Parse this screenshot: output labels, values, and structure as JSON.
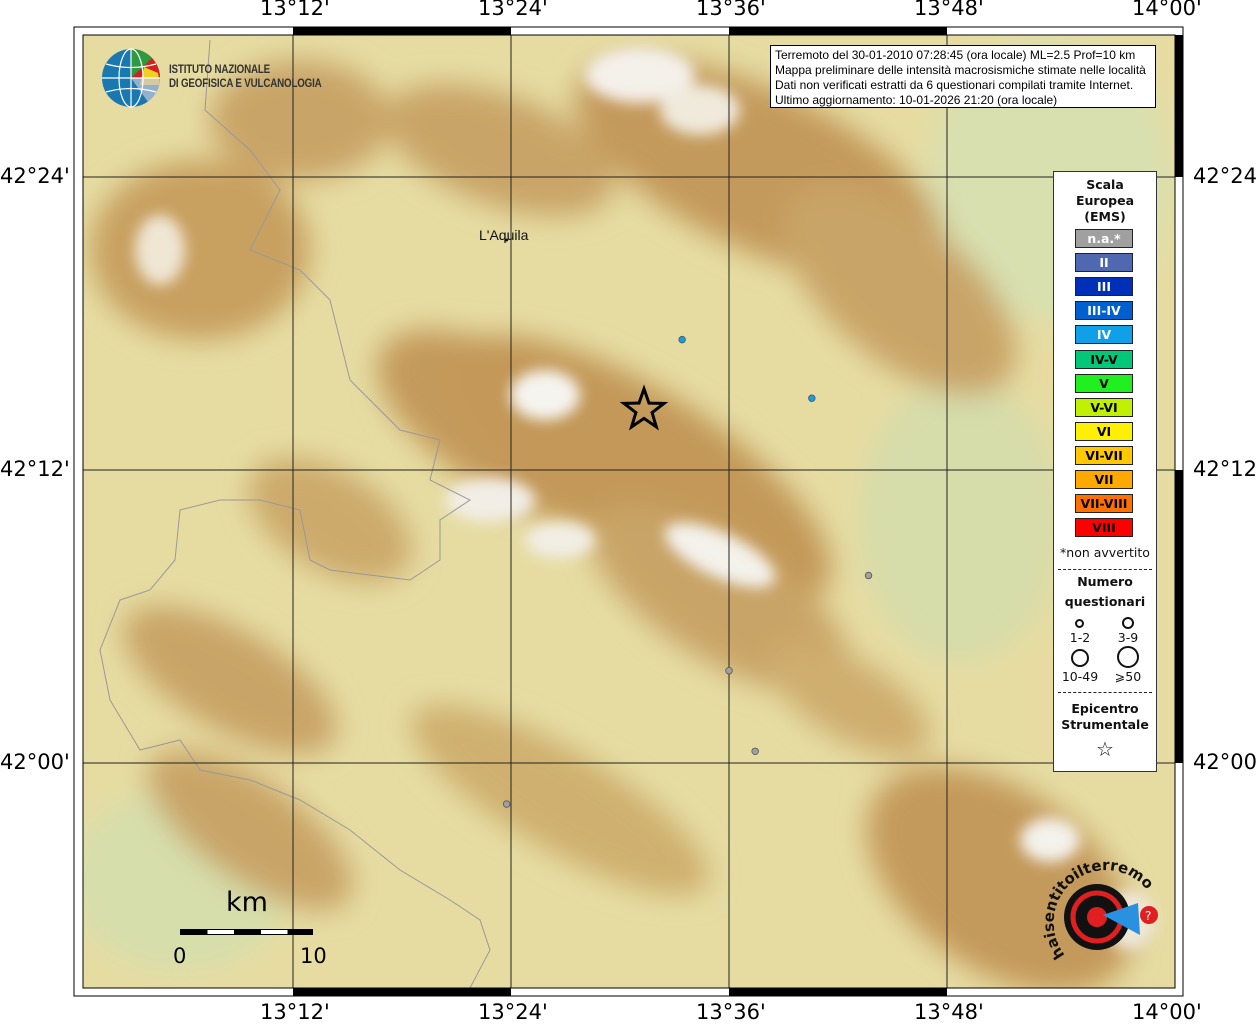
{
  "map": {
    "lon_ticks": [
      "13°12'",
      "13°24'",
      "13°36'",
      "13°48'",
      "14°00'"
    ],
    "lat_ticks": [
      "42°24'",
      "42°12'",
      "42°00'"
    ],
    "lon_tick_values": [
      13.2,
      13.4,
      13.6,
      13.8,
      14.0
    ],
    "lat_tick_values": [
      42.4,
      42.2,
      42.0
    ],
    "place_label": "L'Aquila",
    "place": {
      "lon": 13.396,
      "lat": 42.357
    },
    "epicenter": {
      "lon": 13.522,
      "lat": 42.241
    },
    "points": [
      {
        "lon": 13.557,
        "lat": 42.289,
        "intensity": "IV",
        "color": "#10a0e8"
      },
      {
        "lon": 13.676,
        "lat": 42.249,
        "intensity": "IV",
        "color": "#10a0e8"
      },
      {
        "lon": 13.728,
        "lat": 42.128,
        "intensity": "n.a.*",
        "color": "#a0a0a0"
      },
      {
        "lon": 13.6,
        "lat": 42.063,
        "intensity": "n.a.*",
        "color": "#a0a0a0"
      },
      {
        "lon": 13.624,
        "lat": 42.008,
        "intensity": "n.a.*",
        "color": "#a0a0a0"
      },
      {
        "lon": 13.396,
        "lat": 41.972,
        "intensity": "n.a.*",
        "color": "#a0a0a0"
      }
    ]
  },
  "institute": {
    "line1": "ISTITUTO NAZIONALE",
    "line2": "DI GEOFISICA E VULCANOLOGIA"
  },
  "info": {
    "lines": [
      "Terremoto del 30-01-2010 07:28:45 (ora locale) ML=2.5 Prof=10 km",
      "Mappa preliminare delle intensità macrosismiche stimate nelle località",
      "Dati non verificati estratti da 6 questionari compilati tramite Internet.",
      "Ultimo aggiornamento: 10-01-2026 21:20 (ora locale)"
    ]
  },
  "legend": {
    "title": [
      "Scala",
      "Europea",
      "(EMS)"
    ],
    "scale": [
      {
        "label": "n.a.*",
        "color": "#a0a0a0",
        "text": "#ffffff"
      },
      {
        "label": "II",
        "color": "#5068b0",
        "text": "#ffffff"
      },
      {
        "label": "III",
        "color": "#0030b8",
        "text": "#ffffff"
      },
      {
        "label": "III-IV",
        "color": "#0060d0",
        "text": "#ffffff"
      },
      {
        "label": "IV",
        "color": "#10a0e8",
        "text": "#ffffff"
      },
      {
        "label": "IV-V",
        "color": "#00c878",
        "text": "#000000"
      },
      {
        "label": "V",
        "color": "#20f020",
        "text": "#000000"
      },
      {
        "label": "V-VI",
        "color": "#c0f000",
        "text": "#000000"
      },
      {
        "label": "VI",
        "color": "#fff000",
        "text": "#000000"
      },
      {
        "label": "VI-VII",
        "color": "#ffc800",
        "text": "#000000"
      },
      {
        "label": "VII",
        "color": "#ffa800",
        "text": "#000000"
      },
      {
        "label": "VII-VIII",
        "color": "#ff7000",
        "text": "#000000"
      },
      {
        "label": "VIII",
        "color": "#ff0000",
        "text": "#000000"
      }
    ],
    "note": "*non avvertito",
    "count_title": [
      "Numero",
      "questionari"
    ],
    "count_labels": [
      "1-2",
      "3-9",
      "10-49",
      "⩾50"
    ],
    "epicenter_title": [
      "Epicentro",
      "Strumentale"
    ],
    "epicenter_symbol": "☆"
  },
  "scalebar": {
    "unit": "km",
    "start": "0",
    "end": "10"
  },
  "logo_text": "www.haisentitoilterremoto.it"
}
